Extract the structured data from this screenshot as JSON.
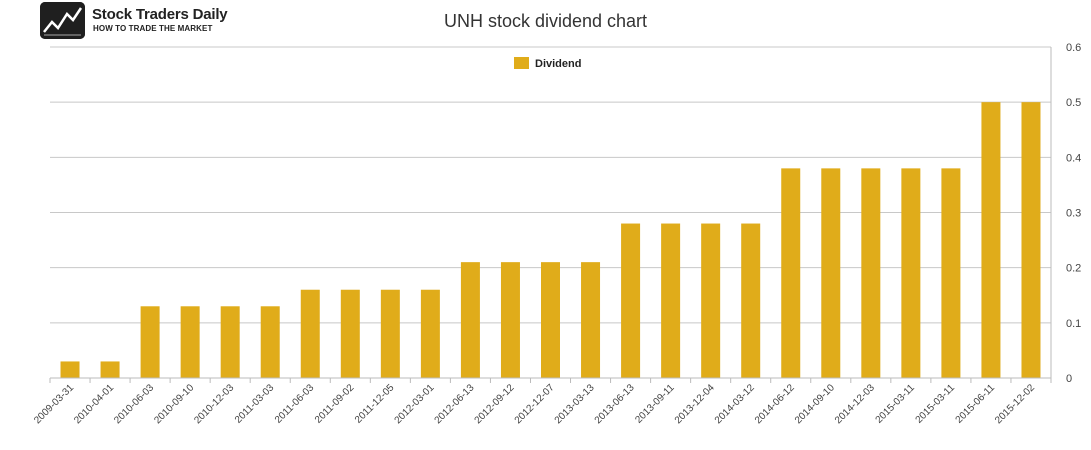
{
  "brand": {
    "name": "Stock Traders Daily",
    "tagline": "HOW TO TRADE THE MARKET"
  },
  "chart_data": {
    "type": "bar",
    "title": "UNH stock dividend chart",
    "xlabel": "",
    "ylabel": "",
    "ylim": [
      0,
      0.6
    ],
    "y_ticks": [
      "0",
      "0.1",
      "0.2",
      "0.3",
      "0.4",
      "0.5",
      "0.6"
    ],
    "y_axis_side": "right",
    "grid": true,
    "legend_position": "top-center",
    "categories": [
      "2009-03-31",
      "2010-04-01",
      "2010-06-03",
      "2010-09-10",
      "2010-12-03",
      "2011-03-03",
      "2011-06-03",
      "2011-09-02",
      "2011-12-05",
      "2012-03-01",
      "2012-06-13",
      "2012-09-12",
      "2012-12-07",
      "2013-03-13",
      "2013-06-13",
      "2013-09-11",
      "2013-12-04",
      "2014-03-12",
      "2014-06-12",
      "2014-09-10",
      "2014-12-03",
      "2015-03-11",
      "2015-03-11",
      "2015-06-11",
      "2015-12-02"
    ],
    "series": [
      {
        "name": "Dividend",
        "color": "#e0ac1a",
        "values": [
          0.03,
          0.03,
          0.13,
          0.13,
          0.13,
          0.13,
          0.16,
          0.16,
          0.16,
          0.16,
          0.21,
          0.21,
          0.21,
          0.21,
          0.28,
          0.28,
          0.28,
          0.28,
          0.38,
          0.38,
          0.38,
          0.38,
          0.38,
          0.5,
          0.5
        ]
      }
    ]
  }
}
